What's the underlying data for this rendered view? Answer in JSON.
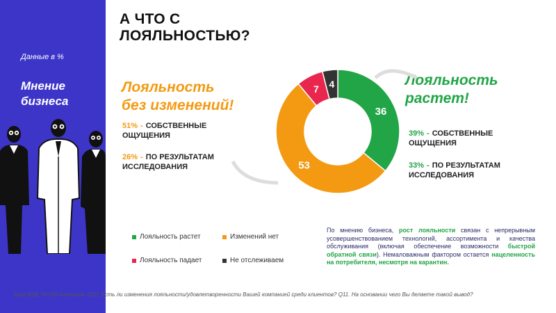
{
  "sidebar": {
    "note": "Данные в %",
    "title": "Мнение бизнеса"
  },
  "page_title_line1": "А ЧТО С",
  "page_title_line2": "ЛОЯЛЬНОСТЬЮ?",
  "left": {
    "heading_line1": "Лояльность",
    "heading_line2": "без изменений!",
    "stats": [
      {
        "pct": "51%",
        "label": "СОБСТВЕННЫЕ ОЩУЩЕНИЯ"
      },
      {
        "pct": "26%",
        "label": "ПО РЕЗУЛЬТАТАМ ИССЛЕДОВАНИЯ"
      }
    ]
  },
  "right": {
    "heading_line1": "Лояльность",
    "heading_line2": "растет!",
    "stats": [
      {
        "pct": "39%",
        "label": "СОБСТВЕННЫЕ ОЩУЩЕНИЯ"
      },
      {
        "pct": "33%",
        "label": "ПО РЕЗУЛЬТАТАМ ИССЛЕДОВАНИЯ"
      }
    ]
  },
  "chart_data": {
    "type": "pie",
    "donut": true,
    "categories": [
      "Лояльность растет",
      "Изменений нет",
      "Лояльность падает",
      "Не отслеживаем"
    ],
    "values": [
      36,
      53,
      7,
      4
    ],
    "colors": [
      "#21a546",
      "#f39a12",
      "#e8264e",
      "#333333"
    ]
  },
  "legend": [
    {
      "label": "Лояльность растет",
      "color": "#21a546"
    },
    {
      "label": "Изменений нет",
      "color": "#f39a12"
    },
    {
      "label": "Лояльность падает",
      "color": "#e8264e"
    },
    {
      "label": "Не отслеживаем",
      "color": "#333333"
    }
  ],
  "note": {
    "p1": "По мнению бизнеса,",
    "hl1": "рост лояльности",
    "p2": "связан с непрерывным усовершенствованием технологий, ассортимента и качества обслуживания (включая обеспечение возможности",
    "hl2": "быстрой обратной связи",
    "p3": "). Немаловажным фактором остается",
    "hl3": "нацеленность на потребителя, несмотря на карантин."
  },
  "footer": "База B2B, N=150 компаний. Q10. Есть ли изменения лояльности/удовлетворенности Вашей компанией среди клиентов? Q11. На основании чего Вы делаете такой вывод?",
  "colors": {
    "sidebar": "#3d35c8",
    "orange": "#f39a12",
    "green": "#21a546",
    "red": "#e8264e",
    "dark": "#333333"
  }
}
